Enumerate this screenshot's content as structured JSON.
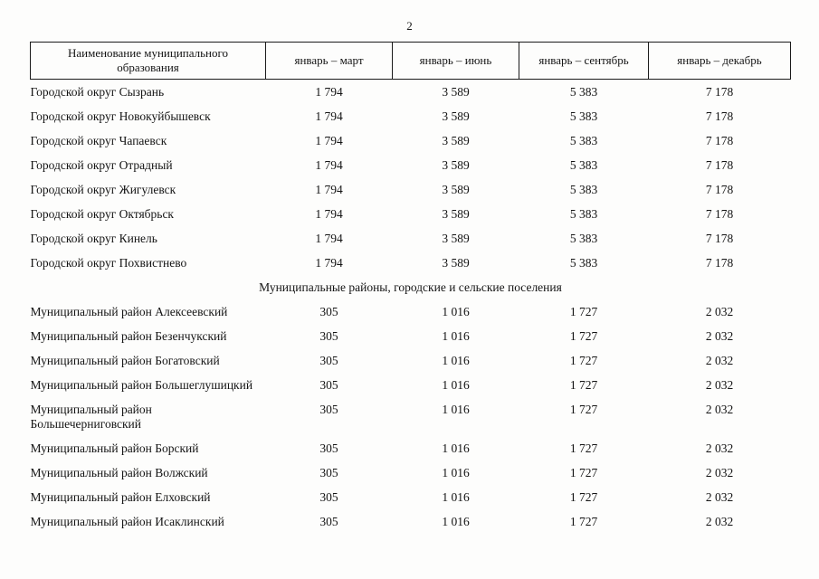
{
  "page": {
    "number": "2"
  },
  "table": {
    "columns": [
      "Наименование муниципального образования",
      "январь – март",
      "январь – июнь",
      "январь – сентябрь",
      "январь – декабрь"
    ],
    "sections": [
      {
        "title": "",
        "rows": [
          {
            "name": "Городской округ Сызрань",
            "values": [
              "1 794",
              "3 589",
              "5 383",
              "7 178"
            ]
          },
          {
            "name": "Городской округ Новокуйбышевск",
            "values": [
              "1 794",
              "3 589",
              "5 383",
              "7 178"
            ]
          },
          {
            "name": "Городской округ Чапаевск",
            "values": [
              "1 794",
              "3 589",
              "5 383",
              "7 178"
            ]
          },
          {
            "name": "Городской округ Отрадный",
            "values": [
              "1 794",
              "3 589",
              "5 383",
              "7 178"
            ]
          },
          {
            "name": "Городской округ Жигулевск",
            "values": [
              "1 794",
              "3 589",
              "5 383",
              "7 178"
            ]
          },
          {
            "name": "Городской округ Октябрьск",
            "values": [
              "1 794",
              "3 589",
              "5 383",
              "7 178"
            ]
          },
          {
            "name": "Городской округ Кинель",
            "values": [
              "1 794",
              "3 589",
              "5 383",
              "7 178"
            ]
          },
          {
            "name": "Городской округ Похвистнево",
            "values": [
              "1 794",
              "3 589",
              "5 383",
              "7 178"
            ]
          }
        ]
      },
      {
        "title": "Муниципальные районы, городские и сельские поселения",
        "rows": [
          {
            "name": "Муниципальный район Алексеевский",
            "values": [
              "305",
              "1 016",
              "1 727",
              "2 032"
            ]
          },
          {
            "name": "Муниципальный район Безенчукский",
            "values": [
              "305",
              "1 016",
              "1 727",
              "2 032"
            ]
          },
          {
            "name": "Муниципальный район Богатовский",
            "values": [
              "305",
              "1 016",
              "1 727",
              "2 032"
            ]
          },
          {
            "name": "Муниципальный район Большеглушицкий",
            "values": [
              "305",
              "1 016",
              "1 727",
              "2 032"
            ]
          },
          {
            "name": "Муниципальный район Большечерниговский",
            "values": [
              "305",
              "1 016",
              "1 727",
              "2 032"
            ]
          },
          {
            "name": "Муниципальный район Борский",
            "values": [
              "305",
              "1 016",
              "1 727",
              "2 032"
            ]
          },
          {
            "name": "Муниципальный район Волжский",
            "values": [
              "305",
              "1 016",
              "1 727",
              "2 032"
            ]
          },
          {
            "name": "Муниципальный район Елховский",
            "values": [
              "305",
              "1 016",
              "1 727",
              "2 032"
            ]
          },
          {
            "name": "Муниципальный район Исаклинский",
            "values": [
              "305",
              "1 016",
              "1 727",
              "2 032"
            ]
          }
        ]
      }
    ]
  }
}
